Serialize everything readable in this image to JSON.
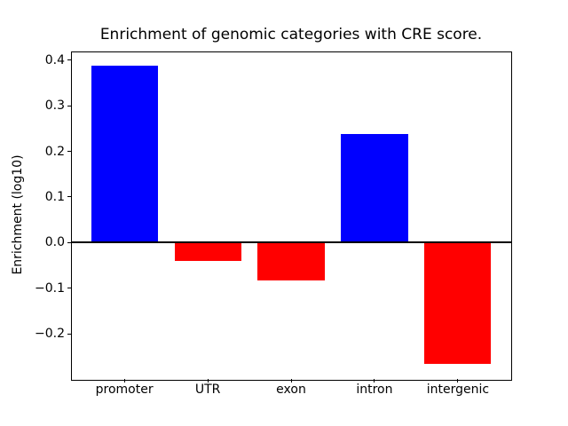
{
  "chart_data": {
    "type": "bar",
    "title": "Enrichment of genomic categories with CRE score.",
    "ylabel": "Enrichment (log10)",
    "xlabel": "",
    "categories": [
      "promoter",
      "UTR",
      "exon",
      "intron",
      "intergenic"
    ],
    "values": [
      0.387,
      -0.04,
      -0.082,
      0.238,
      -0.266
    ],
    "bar_colors": [
      "#0000ff",
      "#ff0000",
      "#ff0000",
      "#0000ff",
      "#ff0000"
    ],
    "positive_color": "#0000ff",
    "negative_color": "#ff0000",
    "bar_width": 0.8,
    "ylim": [
      -0.2986,
      0.4186
    ],
    "xlim": [
      -0.64,
      4.64
    ],
    "yticks": [
      {
        "value": 0.4,
        "label": "0.4"
      },
      {
        "value": 0.3,
        "label": "0.3"
      },
      {
        "value": 0.2,
        "label": "0.2"
      },
      {
        "value": 0.1,
        "label": "0.1"
      },
      {
        "value": 0.0,
        "label": "0.0"
      },
      {
        "value": -0.1,
        "label": "−0.1"
      },
      {
        "value": -0.2,
        "label": "−0.2"
      }
    ],
    "zero_line": true,
    "grid": false,
    "legend": false,
    "background_color": "#ffffff",
    "axis_color": "#000000"
  }
}
